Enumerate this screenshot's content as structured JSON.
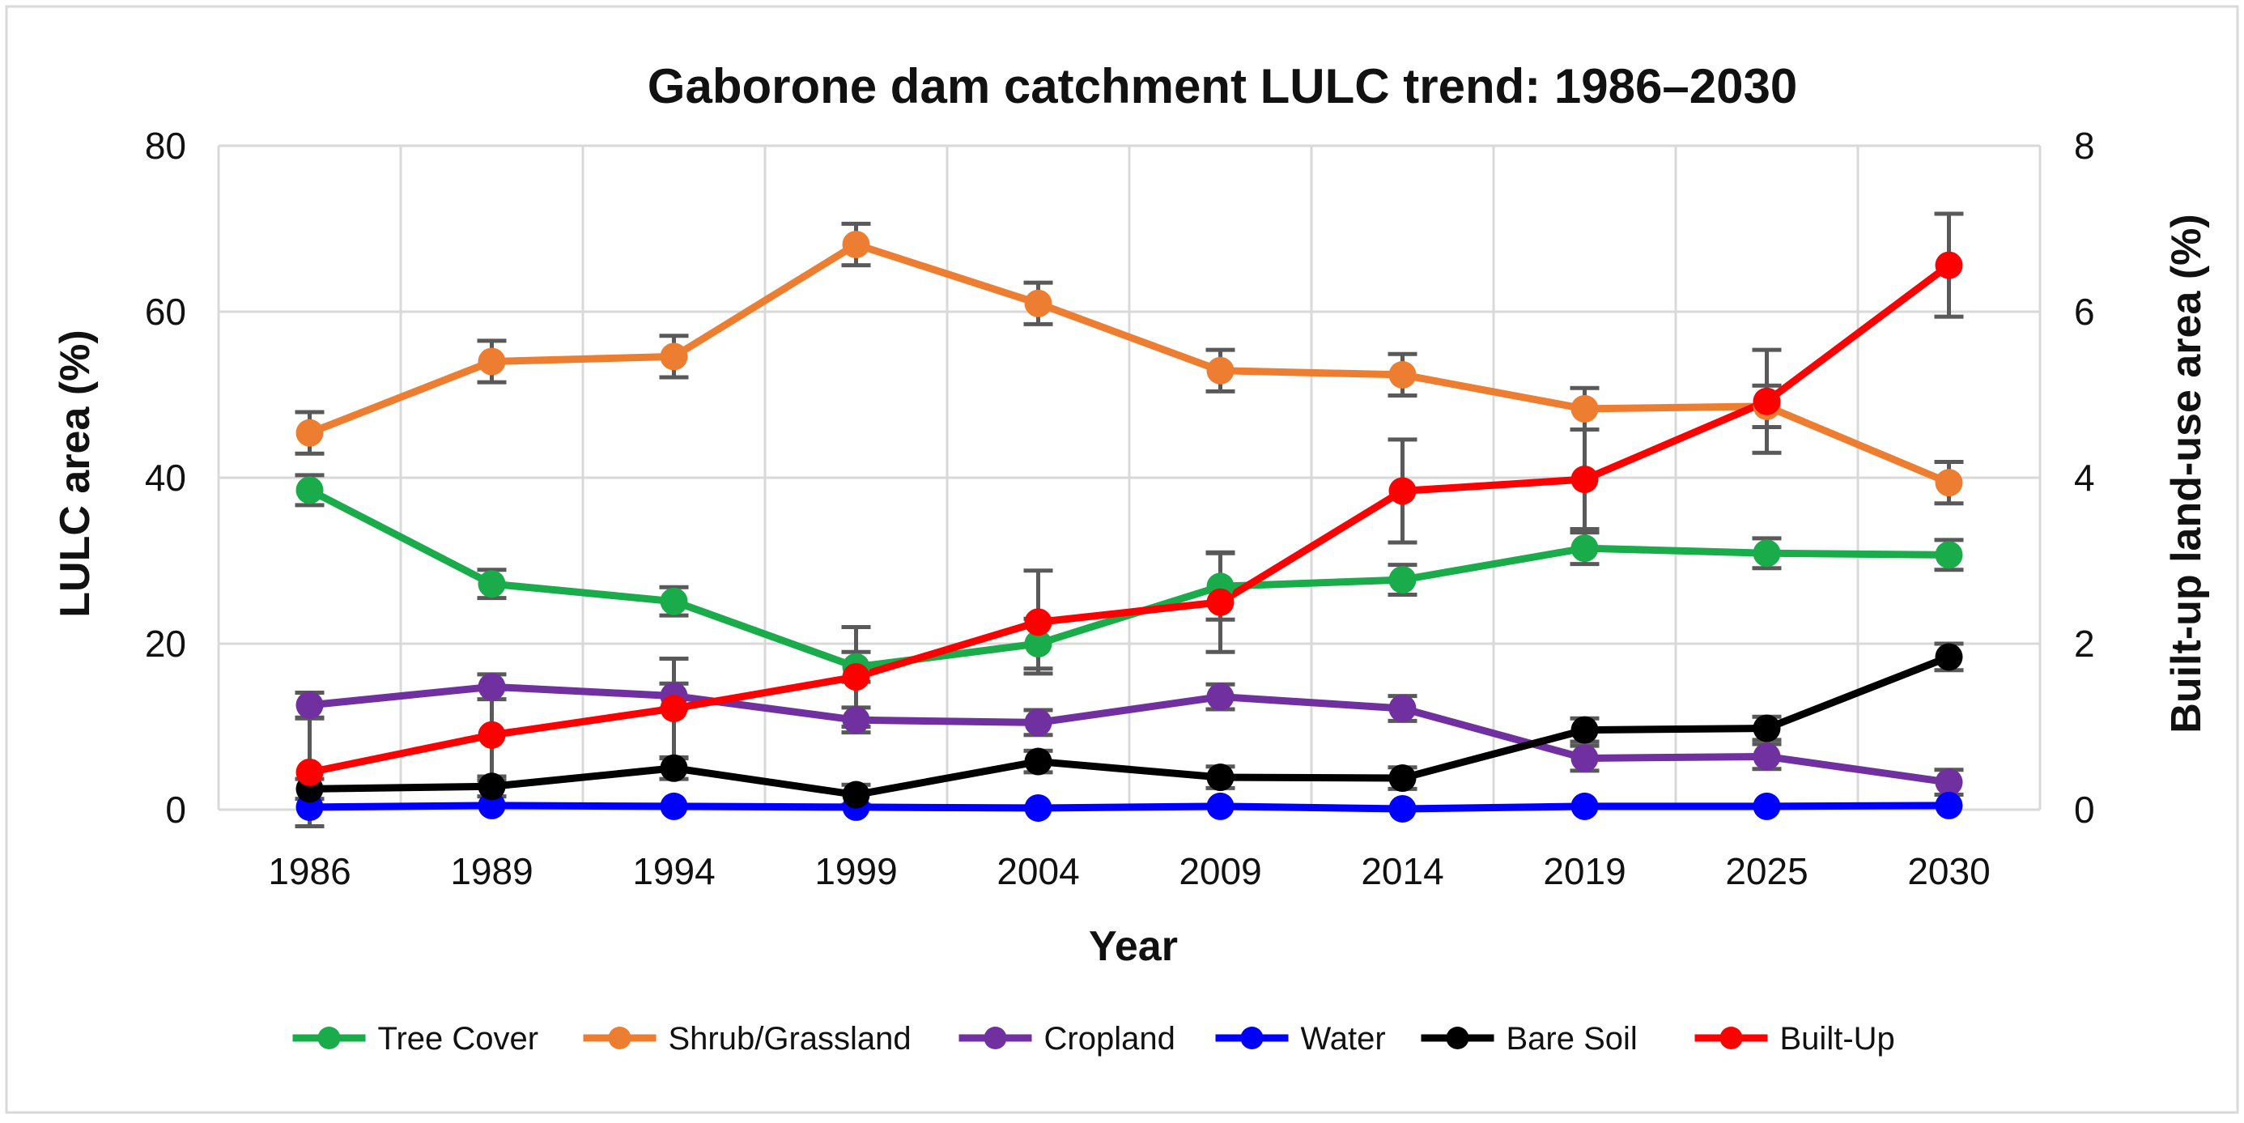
{
  "chart_data": {
    "type": "line",
    "title": "Gaborone dam catchment LULC trend: 1986–2030",
    "xlabel": "Year",
    "ylabel": "LULC area (%)",
    "y2label": "Built-up land-use area (%)",
    "categories": [
      "1986",
      "1989",
      "1994",
      "1999",
      "2004",
      "2009",
      "2014",
      "2019",
      "2025",
      "2030"
    ],
    "ylim": [
      0,
      80
    ],
    "y_ticks": [
      "0",
      "20",
      "40",
      "60",
      "80"
    ],
    "y_tick_values": [
      0,
      20,
      40,
      60,
      80
    ],
    "y2lim": [
      0,
      8
    ],
    "y2_ticks": [
      "0",
      "2",
      "4",
      "6",
      "8"
    ],
    "y2_tick_values": [
      0,
      2,
      4,
      6,
      8
    ],
    "grid": true,
    "legend_position": "bottom",
    "series": [
      {
        "name": "Tree Cover",
        "axis": "left",
        "color": "#1aab4b",
        "values": [
          38.5,
          27.2,
          25.1,
          17.2,
          20.0,
          26.9,
          27.7,
          31.5,
          30.9,
          30.7
        ],
        "errors": [
          1.8,
          1.7,
          1.7,
          1.8,
          3.0,
          4.0,
          1.8,
          1.9,
          1.8,
          1.8
        ]
      },
      {
        "name": "Shrub/Grassland",
        "axis": "left",
        "color": "#ed7d31",
        "values": [
          45.4,
          54.0,
          54.6,
          68.1,
          61.0,
          52.9,
          52.4,
          48.3,
          48.6,
          39.4
        ],
        "errors": [
          2.5,
          2.5,
          2.5,
          2.5,
          2.5,
          2.5,
          2.5,
          2.5,
          2.5,
          2.5
        ]
      },
      {
        "name": "Cropland",
        "axis": "left",
        "color": "#7030a0",
        "values": [
          12.6,
          14.8,
          13.7,
          10.8,
          10.5,
          13.6,
          12.2,
          6.2,
          6.4,
          3.3
        ],
        "errors": [
          1.5,
          1.5,
          1.5,
          1.5,
          1.5,
          1.5,
          1.5,
          1.5,
          1.5,
          1.5
        ]
      },
      {
        "name": "Water",
        "axis": "left",
        "color": "#0000ff",
        "values": [
          0.3,
          0.5,
          0.4,
          0.3,
          0.2,
          0.4,
          0.1,
          0.4,
          0.4,
          0.5
        ],
        "errors": [
          0,
          0,
          0,
          0,
          0,
          0,
          0,
          0,
          0,
          0
        ]
      },
      {
        "name": "Bare Soil",
        "axis": "left",
        "color": "#000000",
        "values": [
          2.5,
          2.8,
          5.0,
          1.8,
          5.8,
          3.9,
          3.8,
          9.6,
          9.8,
          18.4
        ],
        "errors": [
          1.2,
          1.2,
          1.3,
          1.2,
          1.3,
          1.3,
          1.3,
          1.4,
          1.4,
          1.6
        ]
      },
      {
        "name": "Built-Up",
        "axis": "right",
        "color": "#ff0000",
        "values": [
          0.45,
          0.9,
          1.22,
          1.6,
          2.26,
          2.5,
          3.84,
          3.98,
          4.92,
          6.56
        ],
        "errors": [
          0.65,
          0.55,
          0.6,
          0.6,
          0.62,
          0.6,
          0.62,
          0.6,
          0.62,
          0.62
        ]
      }
    ]
  }
}
